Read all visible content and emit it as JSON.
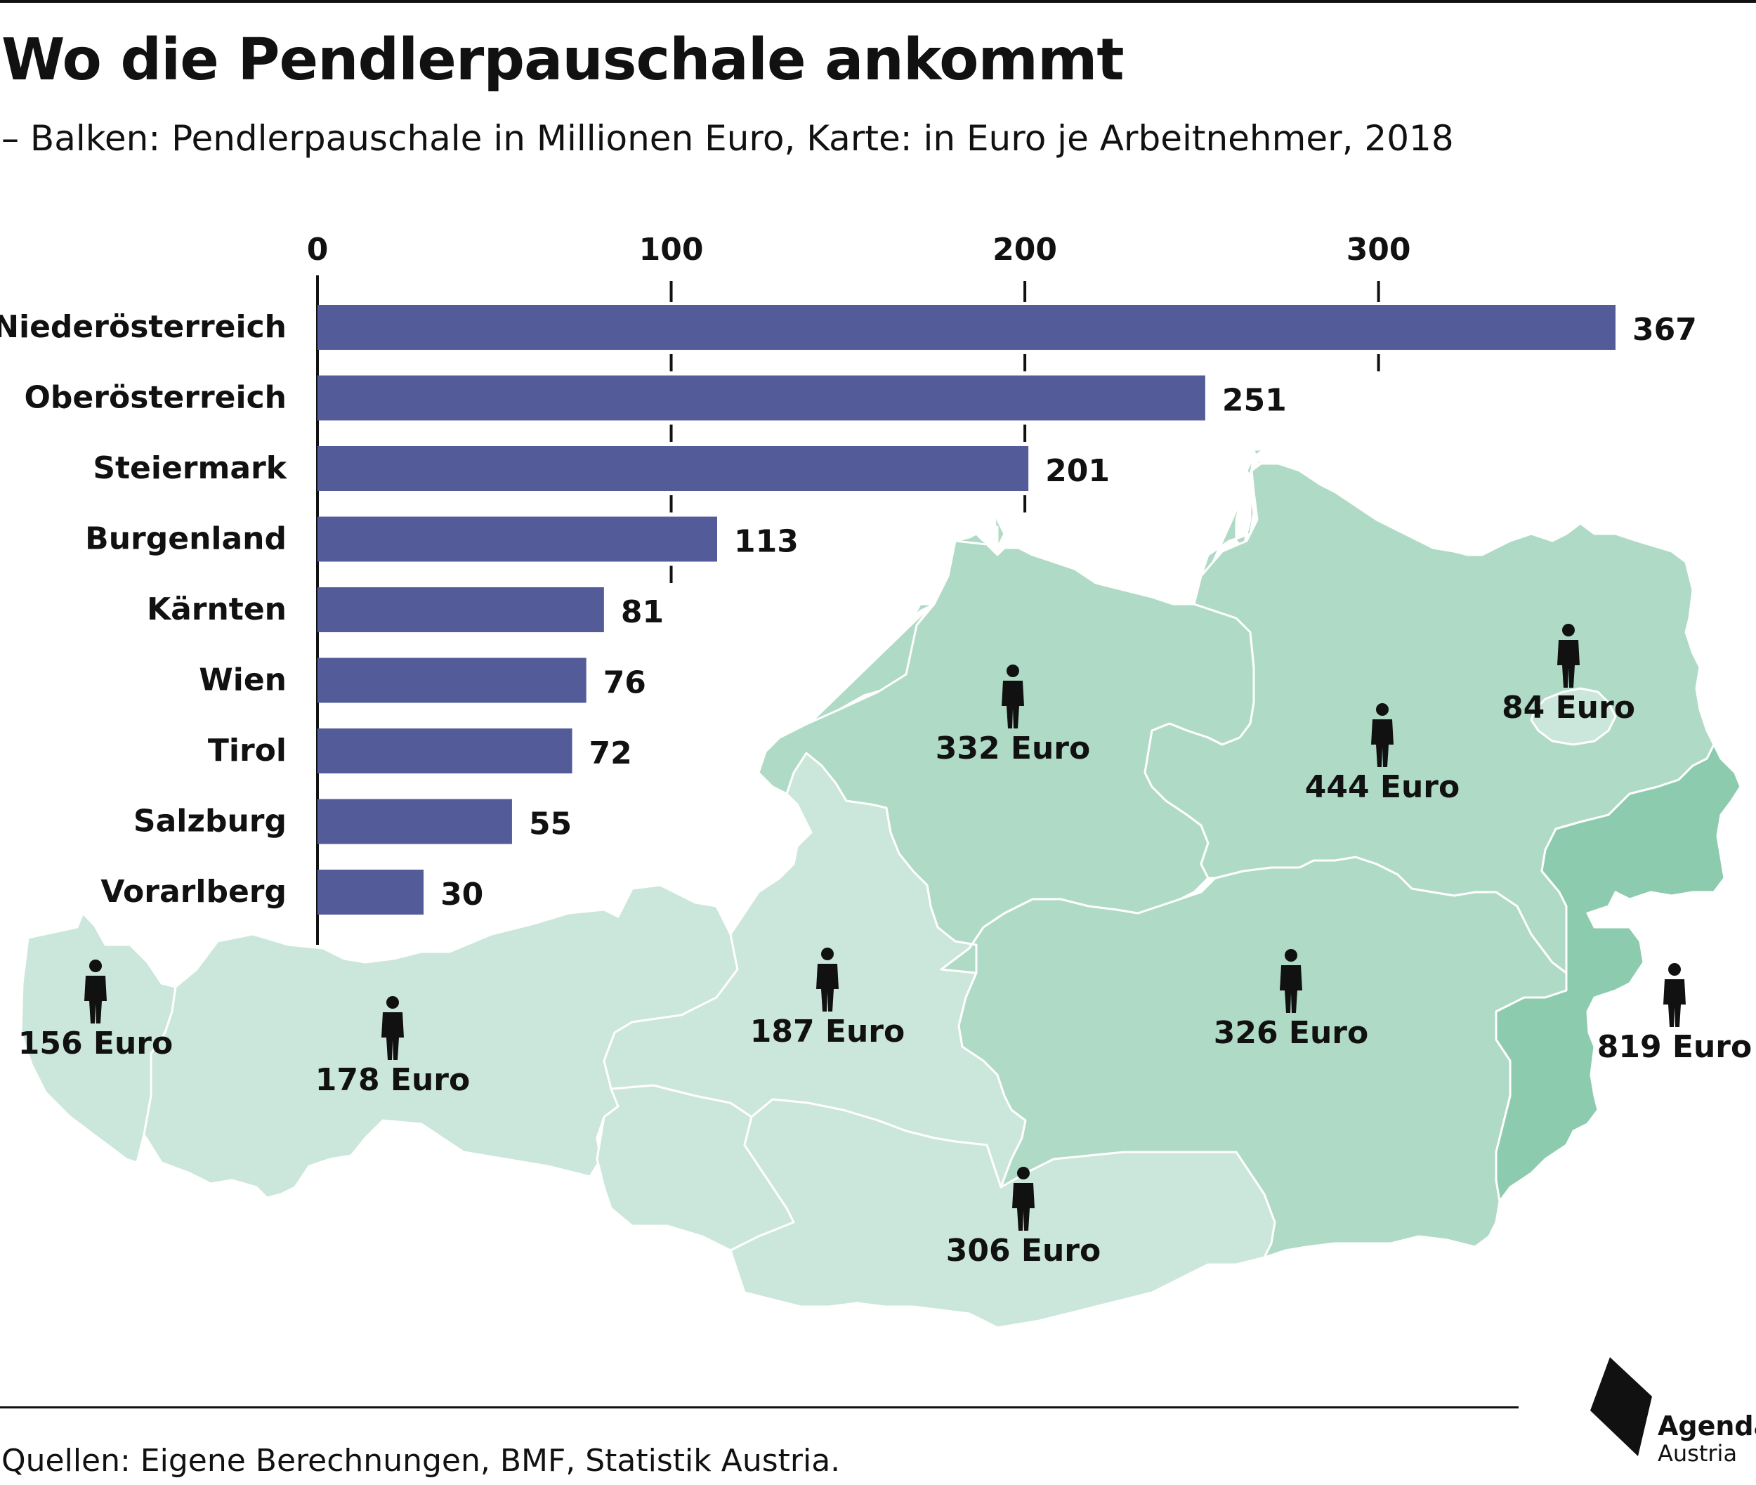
{
  "title": "Wo die Pendlerpauschale ankommt",
  "subtitle": "– Balken: Pendlerpauschale in Millionen Euro, Karte: in Euro je Arbeitnehmer, 2018",
  "source": "Quellen: Eigene Berechnungen, BMF, Statistik Austria.",
  "logo": {
    "name": "Agenda",
    "sub": "Austria"
  },
  "colors": {
    "bar": "#535c99",
    "map_light": "#cbe6da",
    "map_mid": "#afdac6",
    "map_dark": "#8ccbae",
    "text": "#111111"
  },
  "chart_data": {
    "type": "bar",
    "orientation": "horizontal",
    "categories": [
      "Niederösterreich",
      "Oberösterreich",
      "Steiermark",
      "Burgenland",
      "Kärnten",
      "Wien",
      "Tirol",
      "Salzburg",
      "Vorarlberg"
    ],
    "values": [
      367,
      251,
      201,
      113,
      81,
      76,
      72,
      55,
      30
    ],
    "value_labels": [
      "367",
      "251",
      "201",
      "113",
      "81",
      "76",
      "72",
      "55",
      "30"
    ],
    "xlim": [
      0,
      367
    ],
    "xticks": [
      0,
      100,
      200,
      300
    ],
    "xtick_labels": [
      "0",
      "100",
      "200",
      "300"
    ],
    "grid": false
  },
  "map_data": {
    "type": "choropleth",
    "regions": [
      {
        "name": "Vorarlberg",
        "label": "156 Euro",
        "value": 156
      },
      {
        "name": "Tirol",
        "label": "178 Euro",
        "value": 178
      },
      {
        "name": "Salzburg",
        "label": "187 Euro",
        "value": 187
      },
      {
        "name": "Kärnten",
        "label": "306 Euro",
        "value": 306
      },
      {
        "name": "Steiermark",
        "label": "326 Euro",
        "value": 326
      },
      {
        "name": "Oberösterreich",
        "label": "332 Euro",
        "value": 332
      },
      {
        "name": "Niederösterreich",
        "label": "444 Euro",
        "value": 444
      },
      {
        "name": "Wien",
        "label": "84 Euro",
        "value": 84
      },
      {
        "name": "Burgenland",
        "label": "819 Euro",
        "value": 819
      }
    ]
  }
}
